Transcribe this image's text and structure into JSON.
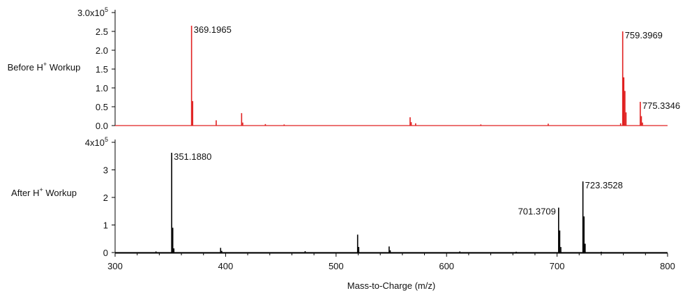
{
  "chart_data": [
    {
      "panel": "top",
      "type": "line",
      "side_label": {
        "text": "Before H",
        "sup": "+",
        "suffix": " Workup"
      },
      "color": "#e02020",
      "xlim": [
        300,
        800
      ],
      "ylim": [
        0,
        300000
      ],
      "y_ticks": [
        {
          "value": 0,
          "label": "0.0"
        },
        {
          "value": 50000,
          "label": "0.5"
        },
        {
          "value": 100000,
          "label": "1.0"
        },
        {
          "value": 150000,
          "label": "1.5"
        },
        {
          "value": 200000,
          "label": "2.0"
        },
        {
          "value": 250000,
          "label": "2.5"
        },
        {
          "value": 300000,
          "label": "3.0x10",
          "sup": "5"
        }
      ],
      "peaks": [
        {
          "x": 369.2,
          "y": 265000
        },
        {
          "x": 370.2,
          "y": 65000
        },
        {
          "x": 391.5,
          "y": 14000
        },
        {
          "x": 414.5,
          "y": 33000
        },
        {
          "x": 415.5,
          "y": 8000
        },
        {
          "x": 436.0,
          "y": 4000
        },
        {
          "x": 453.0,
          "y": 3000
        },
        {
          "x": 567.0,
          "y": 22000
        },
        {
          "x": 568.0,
          "y": 9000
        },
        {
          "x": 572.0,
          "y": 6000
        },
        {
          "x": 631.0,
          "y": 3000
        },
        {
          "x": 692.0,
          "y": 5000
        },
        {
          "x": 757.5,
          "y": 6000
        },
        {
          "x": 759.4,
          "y": 250000
        },
        {
          "x": 760.4,
          "y": 128000
        },
        {
          "x": 761.4,
          "y": 92000
        },
        {
          "x": 762.4,
          "y": 35000
        },
        {
          "x": 775.3,
          "y": 63000
        },
        {
          "x": 776.3,
          "y": 25000
        },
        {
          "x": 777.3,
          "y": 8000
        }
      ],
      "labels": [
        {
          "text": "369.1965",
          "x": 369.2,
          "y": 265000,
          "anchor": "start"
        },
        {
          "text": "759.3969",
          "x": 759.4,
          "y": 250000,
          "anchor": "start"
        },
        {
          "text": "775.3346",
          "x": 775.3,
          "y": 63000,
          "anchor": "start"
        }
      ]
    },
    {
      "panel": "bottom",
      "type": "line",
      "side_label": {
        "text": "After H",
        "sup": "+",
        "suffix": " Workup"
      },
      "color": "#000000",
      "xlim": [
        300,
        800
      ],
      "ylim": [
        0,
        400000
      ],
      "xlabel": "Mass-to-Charge (m/z)",
      "x_ticks": [
        300,
        400,
        500,
        600,
        700,
        800
      ],
      "y_ticks": [
        {
          "value": 0,
          "label": "0"
        },
        {
          "value": 100000,
          "label": "1"
        },
        {
          "value": 200000,
          "label": "2"
        },
        {
          "value": 300000,
          "label": "3"
        },
        {
          "value": 400000,
          "label": "4x10",
          "sup": "5"
        }
      ],
      "peaks": [
        {
          "x": 337.0,
          "y": 4000
        },
        {
          "x": 351.2,
          "y": 362000
        },
        {
          "x": 352.2,
          "y": 90000
        },
        {
          "x": 353.2,
          "y": 15000
        },
        {
          "x": 395.5,
          "y": 17000
        },
        {
          "x": 396.5,
          "y": 6000
        },
        {
          "x": 472.0,
          "y": 5000
        },
        {
          "x": 519.5,
          "y": 65000
        },
        {
          "x": 520.5,
          "y": 20000
        },
        {
          "x": 548.0,
          "y": 22000
        },
        {
          "x": 549.0,
          "y": 8000
        },
        {
          "x": 612.0,
          "y": 4000
        },
        {
          "x": 663.0,
          "y": 3000
        },
        {
          "x": 701.4,
          "y": 163000
        },
        {
          "x": 702.4,
          "y": 80000
        },
        {
          "x": 703.4,
          "y": 20000
        },
        {
          "x": 723.4,
          "y": 258000
        },
        {
          "x": 724.4,
          "y": 131000
        },
        {
          "x": 725.4,
          "y": 32000
        },
        {
          "x": 740.0,
          "y": 3000
        }
      ],
      "labels": [
        {
          "text": "351.1880",
          "x": 351.2,
          "y": 362000,
          "anchor": "start"
        },
        {
          "text": "701.3709",
          "x": 701.4,
          "y": 163000,
          "anchor": "end"
        },
        {
          "text": "723.3528",
          "x": 723.4,
          "y": 258000,
          "anchor": "start"
        }
      ]
    }
  ]
}
